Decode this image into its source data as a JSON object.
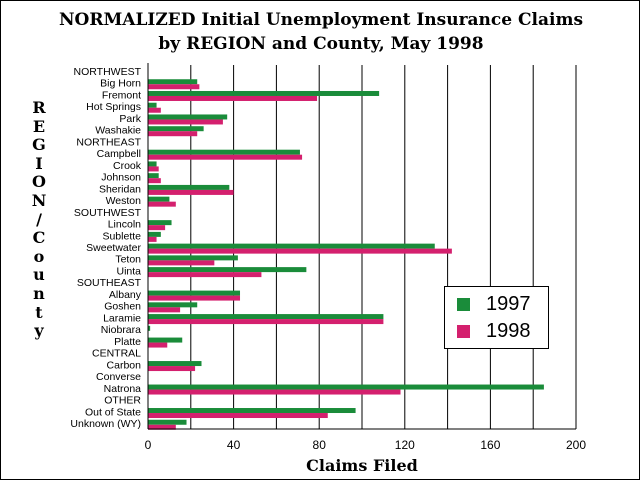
{
  "title_line1": "NORMALIZED Initial Unemployment Insurance Claims",
  "title_line2": "by REGION and County, May 1998",
  "chart_data": {
    "type": "bar",
    "orientation": "horizontal",
    "title": "NORMALIZED Initial Unemployment Insurance Claims by REGION and County, May 1998",
    "xlabel": "Claims Filed",
    "ylabel": "REGION/County",
    "xlim": [
      0,
      200
    ],
    "xticks": [
      0,
      40,
      80,
      120,
      160,
      200
    ],
    "grid": "vertical",
    "legend_position": "right",
    "categories": [
      "NORTHWEST",
      "Big Horn",
      "Fremont",
      "Hot Springs",
      "Park",
      "Washakie",
      "NORTHEAST",
      "Campbell",
      "Crook",
      "Johnson",
      "Sheridan",
      "Weston",
      "SOUTHWEST",
      "Lincoln",
      "Sublette",
      "Sweetwater",
      "Teton",
      "Uinta",
      "SOUTHEAST",
      "Albany",
      "Goshen",
      "Laramie",
      "Niobrara",
      "Platte",
      "CENTRAL",
      "Carbon",
      "Converse",
      "Natrona",
      "OTHER",
      "Out of State",
      "Unknown (WY)"
    ],
    "series": [
      {
        "name": "1997",
        "color": "#1a8c3a",
        "values": [
          null,
          23,
          108,
          4,
          37,
          26,
          null,
          71,
          4,
          5,
          38,
          10,
          null,
          11,
          6,
          134,
          42,
          74,
          null,
          43,
          23,
          110,
          1,
          16,
          null,
          25,
          0,
          185,
          null,
          97,
          18
        ]
      },
      {
        "name": "1998",
        "color": "#d4206e",
        "values": [
          null,
          24,
          79,
          6,
          35,
          23,
          null,
          72,
          5,
          6,
          40,
          13,
          null,
          8,
          4,
          142,
          31,
          53,
          null,
          43,
          15,
          110,
          0,
          9,
          null,
          22,
          0,
          118,
          null,
          84,
          13
        ]
      }
    ]
  }
}
